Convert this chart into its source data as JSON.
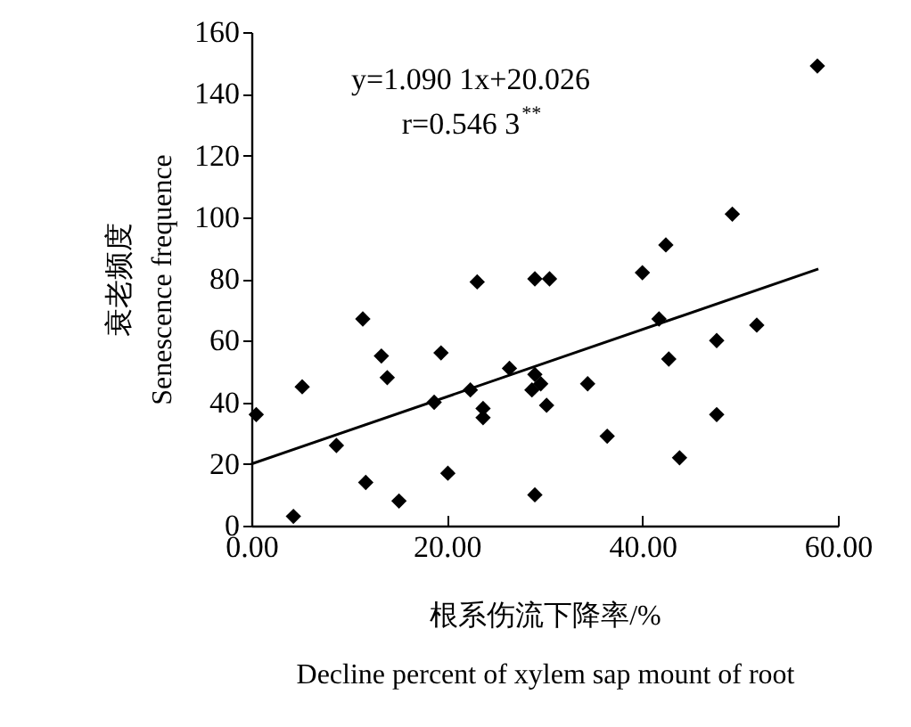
{
  "chart_data": {
    "type": "scatter",
    "xlabel": "根系伤流下降率/%\nDecline percent of xylem sap mount of root",
    "ylabel": "衰老频度\nSenescence frequence",
    "xlim": [
      0,
      60
    ],
    "xticks": [
      {
        "value": 0,
        "label": "0.00"
      },
      {
        "value": 20,
        "label": "20.00"
      },
      {
        "value": 40,
        "label": "40.00"
      },
      {
        "value": 60,
        "label": "60.00"
      }
    ],
    "ylim": [
      0,
      160
    ],
    "yticks": [
      0,
      20,
      40,
      60,
      80,
      100,
      120,
      140,
      160
    ],
    "grid": false,
    "marker": "diamond",
    "annotations": [
      "y=1.090 1x+20.026",
      "r=0.546 3$^{**}$"
    ],
    "series": [
      {
        "color": "#000000",
        "x": [
          0.5,
          4.3,
          5.2,
          8.7,
          11.4,
          11.7,
          13.3,
          13.9,
          15.1,
          18.7,
          19.4,
          20.1,
          22.4,
          23.1,
          23.7,
          23.7,
          26.4,
          29.0,
          30.5,
          29.0,
          29.6,
          28.7,
          30.2,
          29.0,
          34.4,
          36.4,
          40.0,
          41.7,
          42.4,
          42.7,
          43.8,
          47.6,
          47.6,
          49.2,
          51.7,
          57.9
        ],
        "values": [
          36,
          3,
          45,
          26,
          67,
          14,
          55,
          48,
          8,
          40,
          56,
          17,
          44,
          79,
          38,
          35,
          51,
          80,
          80,
          49,
          46,
          44,
          39,
          10,
          46,
          29,
          82,
          67,
          91,
          54,
          22,
          60,
          36,
          101,
          65,
          149
        ]
      },
      {
        "type": "line",
        "marker": "none",
        "color": "#000000",
        "x": [
          0,
          58
        ],
        "values": [
          20.0,
          83.2
        ]
      }
    ]
  }
}
